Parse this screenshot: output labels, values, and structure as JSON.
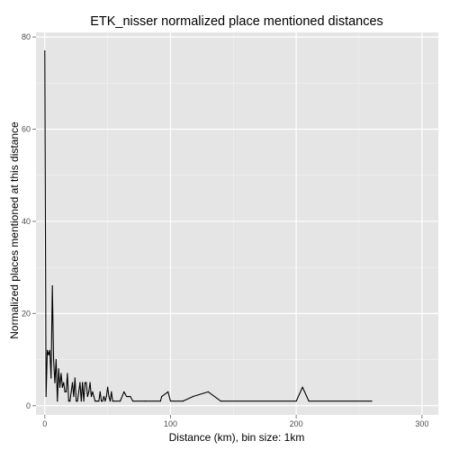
{
  "chart_data": {
    "type": "line",
    "title": "ETK_nisser normalized place mentioned distances",
    "xlabel": "Distance (km), bin size: 1km",
    "ylabel": "Normalized places mentioned at this distance",
    "xlim": [
      -7,
      313
    ],
    "ylim": [
      -2,
      81
    ],
    "xticks": [
      0,
      100,
      200,
      300
    ],
    "yticks": [
      0,
      20,
      40,
      60,
      80
    ],
    "xtick_labels": [
      "0",
      "100",
      "200",
      "300"
    ],
    "ytick_labels": [
      "0",
      "20",
      "40",
      "60",
      "80"
    ],
    "grid": true,
    "legend": "none",
    "colors": {
      "panel_background": "#e5e5e5",
      "grid_major": "#ffffff",
      "grid_minor": "#f2f2f2",
      "line": "#000000",
      "tick": "#7f7f7f"
    },
    "series": [
      {
        "values": [
          [
            0,
            77
          ],
          [
            1,
            2
          ],
          [
            2,
            12
          ],
          [
            3,
            11
          ],
          [
            4,
            12
          ],
          [
            5,
            6
          ],
          [
            6,
            26
          ],
          [
            7,
            10
          ],
          [
            8,
            5
          ],
          [
            9,
            10
          ],
          [
            10,
            1
          ],
          [
            11,
            8
          ],
          [
            12,
            4
          ],
          [
            13,
            7
          ],
          [
            14,
            4
          ],
          [
            15,
            5
          ],
          [
            16,
            3
          ],
          [
            17,
            3
          ],
          [
            18,
            7
          ],
          [
            19,
            1
          ],
          [
            20,
            1
          ],
          [
            21,
            3
          ],
          [
            22,
            5
          ],
          [
            23,
            2
          ],
          [
            24,
            6
          ],
          [
            25,
            1
          ],
          [
            26,
            1
          ],
          [
            27,
            3
          ],
          [
            28,
            5
          ],
          [
            29,
            1
          ],
          [
            30,
            5
          ],
          [
            31,
            1
          ],
          [
            32,
            5
          ],
          [
            33,
            5
          ],
          [
            34,
            2
          ],
          [
            35,
            3
          ],
          [
            36,
            5
          ],
          [
            37,
            2
          ],
          [
            38,
            3
          ],
          [
            39,
            2
          ],
          [
            40,
            1
          ],
          [
            41,
            1
          ],
          [
            42,
            1
          ],
          [
            43,
            1
          ],
          [
            44,
            3
          ],
          [
            45,
            1
          ],
          [
            46,
            1
          ],
          [
            47,
            2
          ],
          [
            48,
            1
          ],
          [
            49,
            2
          ],
          [
            50,
            4
          ],
          [
            51,
            2
          ],
          [
            52,
            1
          ],
          [
            53,
            3
          ],
          [
            54,
            1
          ],
          [
            55,
            1
          ],
          [
            60,
            1
          ],
          [
            63,
            3
          ],
          [
            65,
            2
          ],
          [
            68,
            2
          ],
          [
            70,
            1
          ],
          [
            80,
            1
          ],
          [
            92,
            1
          ],
          [
            93,
            2
          ],
          [
            98,
            3
          ],
          [
            100,
            1
          ],
          [
            110,
            1
          ],
          [
            118,
            2
          ],
          [
            130,
            3
          ],
          [
            140,
            1
          ],
          [
            200,
            1
          ],
          [
            205,
            4
          ],
          [
            210,
            1
          ],
          [
            260,
            1
          ]
        ]
      }
    ]
  }
}
